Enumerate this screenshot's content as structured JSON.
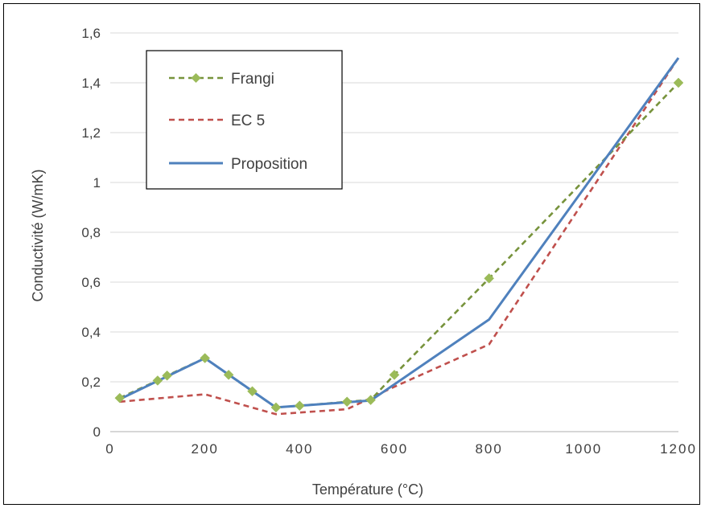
{
  "chart_data": {
    "type": "line",
    "title": "",
    "xlabel": "Température (°C)",
    "ylabel": "Conductivité (W/mK)",
    "xlim": [
      0,
      1200
    ],
    "ylim": [
      0,
      1.6
    ],
    "x_ticks": [
      0,
      200,
      400,
      600,
      800,
      1000,
      1200
    ],
    "x_tick_labels": [
      "0",
      "200",
      "400",
      "600",
      "800",
      "1000",
      "1200"
    ],
    "y_ticks": [
      0,
      0.2,
      0.4,
      0.6,
      0.8,
      1.0,
      1.2,
      1.4,
      1.6
    ],
    "y_tick_labels": [
      "0",
      "0,2",
      "0,4",
      "0,6",
      "0,8",
      "1",
      "1,2",
      "1,4",
      "1,6"
    ],
    "grid": "horizontal",
    "legend_position": "top-left",
    "series": [
      {
        "name": "Frangi",
        "color": "#77933c",
        "marker_color": "#9bbb59",
        "line_style": "dashed",
        "marker": "diamond",
        "points": [
          [
            20,
            0.135
          ],
          [
            100,
            0.205
          ],
          [
            120,
            0.225
          ],
          [
            200,
            0.295
          ],
          [
            250,
            0.228
          ],
          [
            300,
            0.162
          ],
          [
            350,
            0.097
          ],
          [
            400,
            0.104
          ],
          [
            500,
            0.12
          ],
          [
            550,
            0.127
          ],
          [
            600,
            0.228
          ],
          [
            800,
            0.615
          ],
          [
            1200,
            1.4
          ]
        ]
      },
      {
        "name": "EC 5",
        "color": "#c0504d",
        "line_style": "dashed",
        "marker": "none",
        "points": [
          [
            20,
            0.12
          ],
          [
            200,
            0.15
          ],
          [
            350,
            0.07
          ],
          [
            500,
            0.09
          ],
          [
            600,
            0.18
          ],
          [
            800,
            0.35
          ],
          [
            1200,
            1.5
          ]
        ]
      },
      {
        "name": "Proposition",
        "color": "#4f81bd",
        "line_style": "solid",
        "marker": "none",
        "points": [
          [
            20,
            0.13
          ],
          [
            200,
            0.295
          ],
          [
            350,
            0.097
          ],
          [
            550,
            0.125
          ],
          [
            800,
            0.45
          ],
          [
            1200,
            1.5
          ]
        ]
      }
    ]
  }
}
